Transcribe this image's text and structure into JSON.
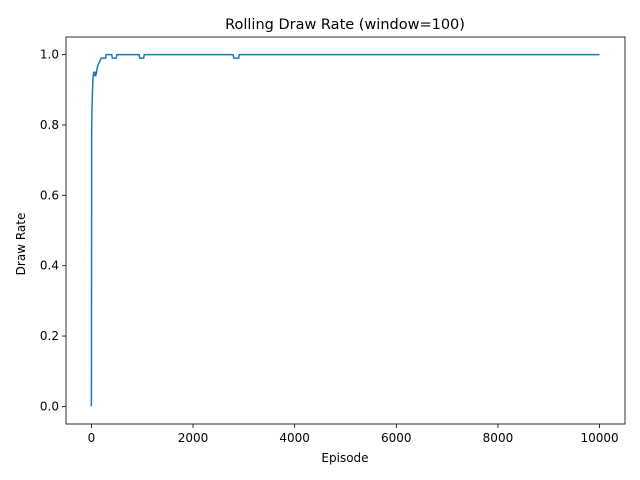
{
  "chart_data": {
    "type": "line",
    "title": "Rolling Draw Rate (window=100)",
    "xlabel": "Episode",
    "ylabel": "Draw Rate",
    "xlim": [
      -500,
      10500
    ],
    "ylim": [
      -0.05,
      1.05
    ],
    "xticks": [
      0,
      2000,
      4000,
      6000,
      8000,
      10000
    ],
    "xtick_labels": [
      "0",
      "2000",
      "4000",
      "6000",
      "8000",
      "10000"
    ],
    "yticks": [
      0.0,
      0.2,
      0.4,
      0.6,
      0.8,
      1.0
    ],
    "ytick_labels": [
      "0.0",
      "0.2",
      "0.4",
      "0.6",
      "0.8",
      "1.0"
    ],
    "grid": false,
    "series": [
      {
        "color": "#1f77b4",
        "points": [
          [
            0,
            0.0
          ],
          [
            5,
            0.78
          ],
          [
            10,
            0.84
          ],
          [
            15,
            0.86
          ],
          [
            20,
            0.89
          ],
          [
            30,
            0.93
          ],
          [
            45,
            0.95
          ],
          [
            55,
            0.94
          ],
          [
            70,
            0.95
          ],
          [
            85,
            0.94
          ],
          [
            100,
            0.95
          ],
          [
            110,
            0.96
          ],
          [
            130,
            0.97
          ],
          [
            160,
            0.98
          ],
          [
            190,
            0.99
          ],
          [
            280,
            0.99
          ],
          [
            290,
            1.0
          ],
          [
            400,
            1.0
          ],
          [
            410,
            0.99
          ],
          [
            490,
            0.99
          ],
          [
            500,
            1.0
          ],
          [
            940,
            1.0
          ],
          [
            950,
            0.99
          ],
          [
            1030,
            0.99
          ],
          [
            1040,
            1.0
          ],
          [
            2790,
            1.0
          ],
          [
            2800,
            0.99
          ],
          [
            2900,
            0.99
          ],
          [
            2910,
            1.0
          ],
          [
            10000,
            1.0
          ]
        ]
      }
    ]
  }
}
